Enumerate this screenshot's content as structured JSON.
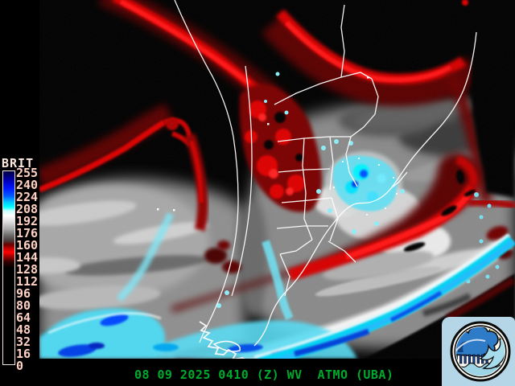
{
  "colorbar": {
    "title": "BRIT",
    "values": [
      "255",
      "240",
      "224",
      "208",
      "192",
      "176",
      "160",
      "144",
      "128",
      "112",
      "96",
      "80",
      "64",
      "48",
      "32",
      "16",
      "0"
    ],
    "title_color": "#ffeae2",
    "label_color": "#ffd2c4",
    "bar_border_color": "#f2e2dc",
    "gradient_stops": [
      [
        "#000040",
        0
      ],
      [
        "#0000b8",
        5
      ],
      [
        "#0018ff",
        9
      ],
      [
        "#0060ff",
        13
      ],
      [
        "#00c8ff",
        16
      ],
      [
        "#00ffff",
        18.5
      ],
      [
        "#c8ffff",
        20.5
      ],
      [
        "#ffffff",
        23
      ],
      [
        "#e0e0e0",
        26
      ],
      [
        "#a8a8a8",
        30
      ],
      [
        "#6e6e6e",
        33
      ],
      [
        "#4a3a3a",
        36
      ],
      [
        "#6a0000",
        38
      ],
      [
        "#c00000",
        40
      ],
      [
        "#ff0000",
        42
      ],
      [
        "#900000",
        44.5
      ],
      [
        "#300000",
        47
      ],
      [
        "#000000",
        50
      ],
      [
        "#000000",
        100
      ]
    ]
  },
  "caption": {
    "text": "08 09 2025 0410 (Z) WV  ATMO (UBA)",
    "date": "08 09 2025",
    "time": "0410",
    "zone": "(Z)",
    "product": "WV",
    "source": "ATMO (UBA)",
    "color": "#00aa2c"
  },
  "logo": {
    "name": "ATMO UBA weather emblem",
    "background": "#b4d6e6"
  },
  "palette_key_colors": {
    "dry_red": "#e00000",
    "maroon": "#600000",
    "cold_cloud_cyan": "#00e0ff",
    "coldest_blue": "#0040e8",
    "cloud_gray": "#a8a8a8",
    "border_white": "#ffffff"
  }
}
